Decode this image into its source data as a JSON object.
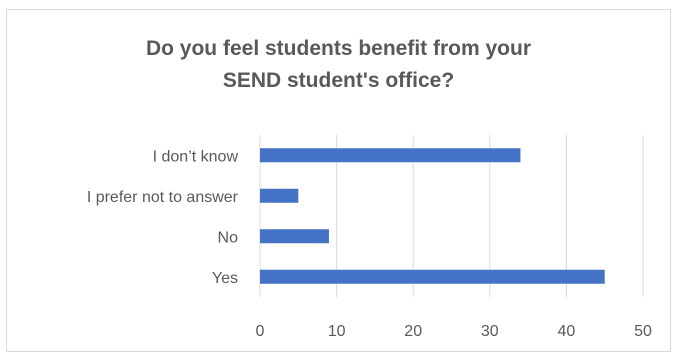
{
  "chart_data": {
    "type": "bar",
    "orientation": "horizontal",
    "title_lines": [
      "Do you feel students benefit from your",
      "SEND student's office?"
    ],
    "categories": [
      "I don’t know",
      "I prefer not to answer",
      "No",
      "Yes"
    ],
    "values": [
      34,
      5,
      9,
      45
    ],
    "xlim": [
      0,
      50
    ],
    "x_ticks": [
      0,
      10,
      20,
      30,
      40,
      50
    ],
    "xlabel": "",
    "ylabel": "",
    "grid": "vertical",
    "legend": "none",
    "bar_color": "#4472C4",
    "gridline_color": "#d9d9d9",
    "text_color": "#595959"
  }
}
